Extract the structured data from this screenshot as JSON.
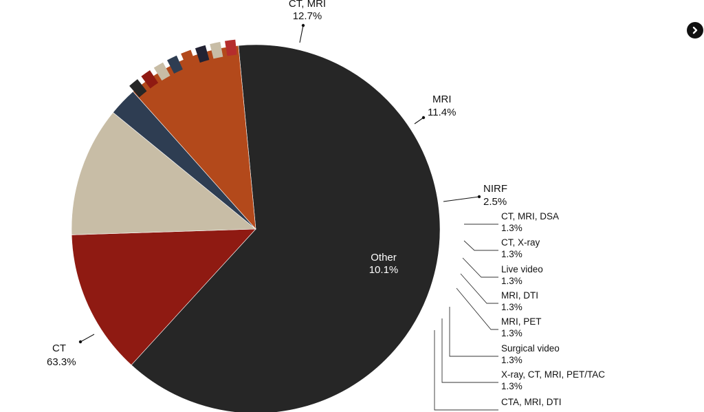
{
  "chart_data": {
    "type": "pie",
    "title": "",
    "slices": [
      {
        "label": "CT",
        "value": 63.3,
        "value_label": "63.3%",
        "color": "#262626"
      },
      {
        "label": "CT, MRI",
        "value": 12.7,
        "value_label": "12.7%",
        "color": "#8f1a12"
      },
      {
        "label": "MRI",
        "value": 11.4,
        "value_label": "11.4%",
        "color": "#c8bda6"
      },
      {
        "label": "NIRF",
        "value": 2.5,
        "value_label": "2.5%",
        "color": "#2e3d52"
      },
      {
        "label": "Other",
        "value": 10.1,
        "value_label": "10.1%",
        "color": "#b3491b"
      }
    ],
    "other_breakdown": [
      {
        "label": "CT, MRI, DSA",
        "value": 1.3,
        "value_label": "1.3%",
        "color": "#262626"
      },
      {
        "label": "CT, X-ray",
        "value": 1.3,
        "value_label": "1.3%",
        "color": "#8f1a12"
      },
      {
        "label": "Live video",
        "value": 1.3,
        "value_label": "1.3%",
        "color": "#c8bda6"
      },
      {
        "label": "MRI, DTI",
        "value": 1.3,
        "value_label": "1.3%",
        "color": "#2e3d52"
      },
      {
        "label": "MRI, PET",
        "value": 1.3,
        "value_label": "1.3%",
        "color": "#b3491b"
      },
      {
        "label": "Surgical video",
        "value": 1.3,
        "value_label": "1.3%",
        "color": "#222233"
      },
      {
        "label": "X-ray, CT, MRI, PET/TAC",
        "value": 1.3,
        "value_label": "1.3%",
        "color": "#c8bda6"
      },
      {
        "label": "CTA, MRI, DTI",
        "value": 1.3,
        "value_label": "1.3%",
        "color": "#b52d2d"
      }
    ]
  },
  "nav": {
    "next_icon": "chevron-right-icon"
  }
}
